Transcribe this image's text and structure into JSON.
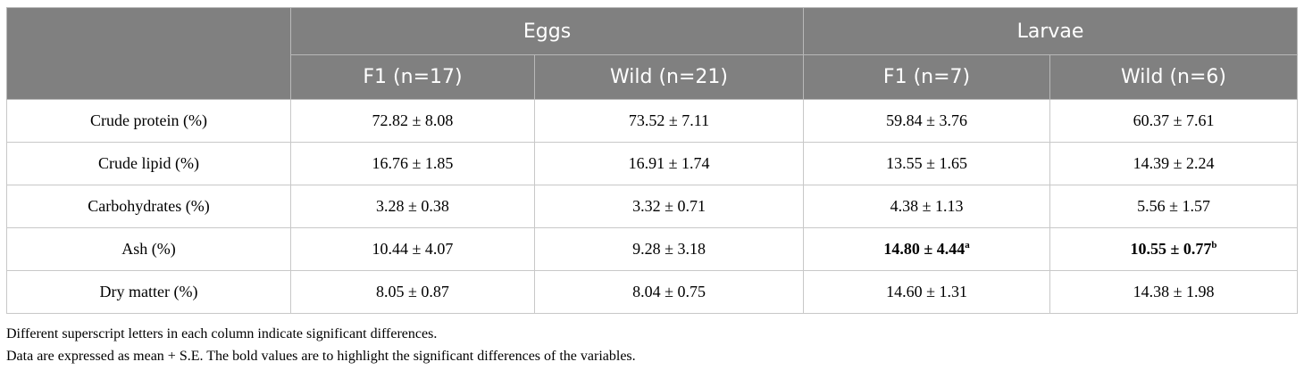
{
  "table": {
    "groups": [
      {
        "label": "Eggs"
      },
      {
        "label": "Larvae"
      }
    ],
    "subheaders": [
      "F1 (n=17)",
      "Wild (n=21)",
      "F1 (n=7)",
      "Wild (n=6)"
    ],
    "rows": [
      {
        "label": "Crude protein (%)",
        "cells": [
          {
            "value": "72.82 ± 8.08",
            "sup": ""
          },
          {
            "value": "73.52 ± 7.11",
            "sup": ""
          },
          {
            "value": "59.84 ± 3.76",
            "sup": ""
          },
          {
            "value": "60.37 ± 7.61",
            "sup": ""
          }
        ]
      },
      {
        "label": "Crude lipid (%)",
        "cells": [
          {
            "value": "16.76 ± 1.85",
            "sup": ""
          },
          {
            "value": "16.91 ± 1.74",
            "sup": ""
          },
          {
            "value": "13.55 ± 1.65",
            "sup": ""
          },
          {
            "value": "14.39 ± 2.24",
            "sup": ""
          }
        ]
      },
      {
        "label": "Carbohydrates (%)",
        "cells": [
          {
            "value": "3.28 ± 0.38",
            "sup": ""
          },
          {
            "value": "3.32 ± 0.71",
            "sup": ""
          },
          {
            "value": "4.38 ± 1.13",
            "sup": ""
          },
          {
            "value": "5.56 ± 1.57",
            "sup": ""
          }
        ]
      },
      {
        "label": "Ash (%)",
        "cells": [
          {
            "value": "10.44 ± 4.07",
            "sup": ""
          },
          {
            "value": "9.28 ± 3.18",
            "sup": ""
          },
          {
            "value": "14.80 ± 4.44",
            "sup": "a",
            "bold": true
          },
          {
            "value": "10.55 ± 0.77",
            "sup": "b",
            "bold": true
          }
        ]
      },
      {
        "label": "Dry matter (%)",
        "cells": [
          {
            "value": "8.05 ± 0.87",
            "sup": ""
          },
          {
            "value": "8.04 ± 0.75",
            "sup": ""
          },
          {
            "value": "14.60 ± 1.31",
            "sup": ""
          },
          {
            "value": "14.38 ± 1.98",
            "sup": ""
          }
        ]
      }
    ]
  },
  "footnotes": [
    "Different superscript letters in each column indicate significant differences.",
    "Data are expressed as mean + S.E. The bold values are to highlight the significant differences of the variables."
  ]
}
